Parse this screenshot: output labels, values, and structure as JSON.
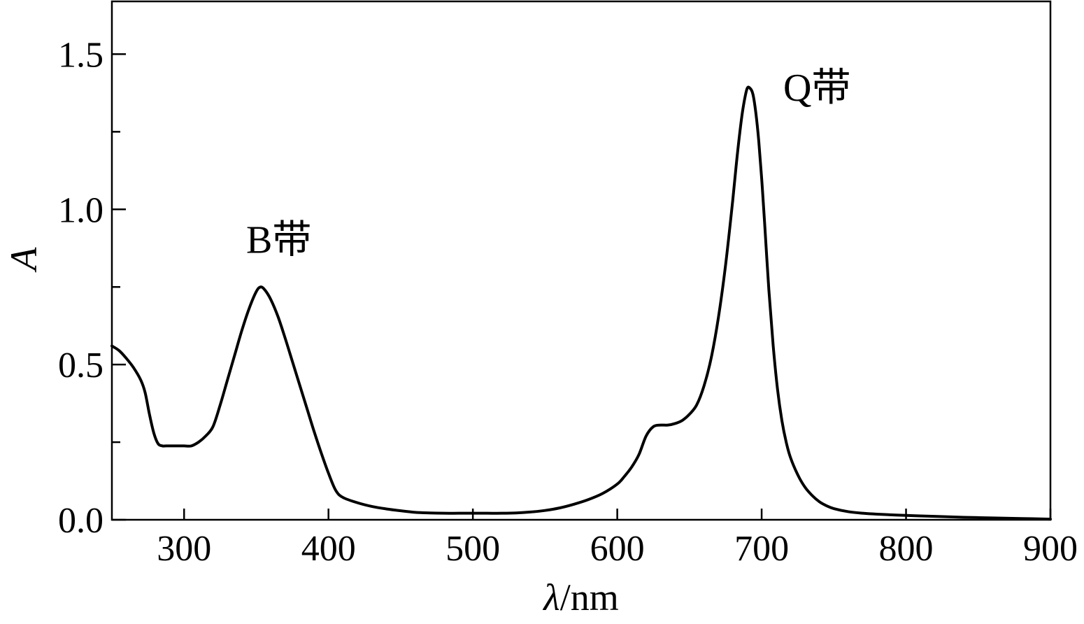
{
  "chart_data": {
    "type": "line",
    "title": "",
    "xlabel_symbol": "λ",
    "xlabel_unit": "/nm",
    "ylabel": "A",
    "xlim": [
      250,
      900
    ],
    "ylim": [
      0.0,
      1.67
    ],
    "x_ticks": [
      300,
      400,
      500,
      600,
      700,
      800,
      900
    ],
    "x_tick_labels": [
      "300",
      "400",
      "500",
      "600",
      "700",
      "800",
      "900"
    ],
    "y_ticks": [
      0.0,
      0.5,
      1.0,
      1.5
    ],
    "y_tick_labels": [
      "0.0",
      "0.5",
      "1.0",
      "1.5"
    ],
    "y_minor_ticks": [
      0.25,
      0.75,
      1.25
    ],
    "grid": false,
    "line_color": "#000000",
    "annotations": [
      {
        "text": "B带",
        "x": 343,
        "y": 0.86
      },
      {
        "text": "Q带",
        "x": 715,
        "y": 1.35
      }
    ],
    "series": [
      {
        "x": [
          250,
          255,
          260,
          265,
          270,
          273,
          276,
          279,
          282,
          285,
          288,
          295,
          300,
          305,
          310,
          315,
          320,
          325,
          330,
          335,
          340,
          345,
          350,
          353,
          356,
          360,
          365,
          370,
          375,
          380,
          385,
          390,
          395,
          400,
          405,
          410,
          420,
          430,
          440,
          450,
          460,
          470,
          480,
          490,
          500,
          510,
          520,
          530,
          540,
          550,
          560,
          570,
          580,
          590,
          600,
          605,
          610,
          615,
          620,
          625,
          630,
          635,
          640,
          645,
          650,
          655,
          660,
          665,
          670,
          675,
          680,
          683,
          686,
          688,
          690,
          692,
          694,
          696,
          698,
          700,
          702,
          705,
          708,
          711,
          714,
          717,
          720,
          725,
          730,
          735,
          740,
          745,
          750,
          760,
          770,
          780,
          800,
          820,
          840,
          860,
          880,
          900
        ],
        "y": [
          0.56,
          0.545,
          0.52,
          0.49,
          0.45,
          0.41,
          0.34,
          0.28,
          0.245,
          0.238,
          0.238,
          0.238,
          0.238,
          0.238,
          0.25,
          0.27,
          0.3,
          0.37,
          0.45,
          0.53,
          0.61,
          0.68,
          0.735,
          0.75,
          0.74,
          0.71,
          0.655,
          0.585,
          0.51,
          0.435,
          0.36,
          0.285,
          0.215,
          0.15,
          0.095,
          0.072,
          0.055,
          0.043,
          0.035,
          0.029,
          0.024,
          0.022,
          0.021,
          0.021,
          0.021,
          0.021,
          0.021,
          0.022,
          0.025,
          0.03,
          0.038,
          0.05,
          0.065,
          0.085,
          0.115,
          0.14,
          0.17,
          0.21,
          0.27,
          0.3,
          0.305,
          0.305,
          0.31,
          0.32,
          0.34,
          0.37,
          0.43,
          0.52,
          0.65,
          0.82,
          1.03,
          1.17,
          1.29,
          1.35,
          1.39,
          1.39,
          1.37,
          1.31,
          1.22,
          1.1,
          0.96,
          0.74,
          0.56,
          0.42,
          0.32,
          0.25,
          0.2,
          0.145,
          0.105,
          0.078,
          0.058,
          0.045,
          0.036,
          0.026,
          0.021,
          0.018,
          0.014,
          0.011,
          0.008,
          0.006,
          0.004,
          0.002
        ]
      }
    ]
  }
}
